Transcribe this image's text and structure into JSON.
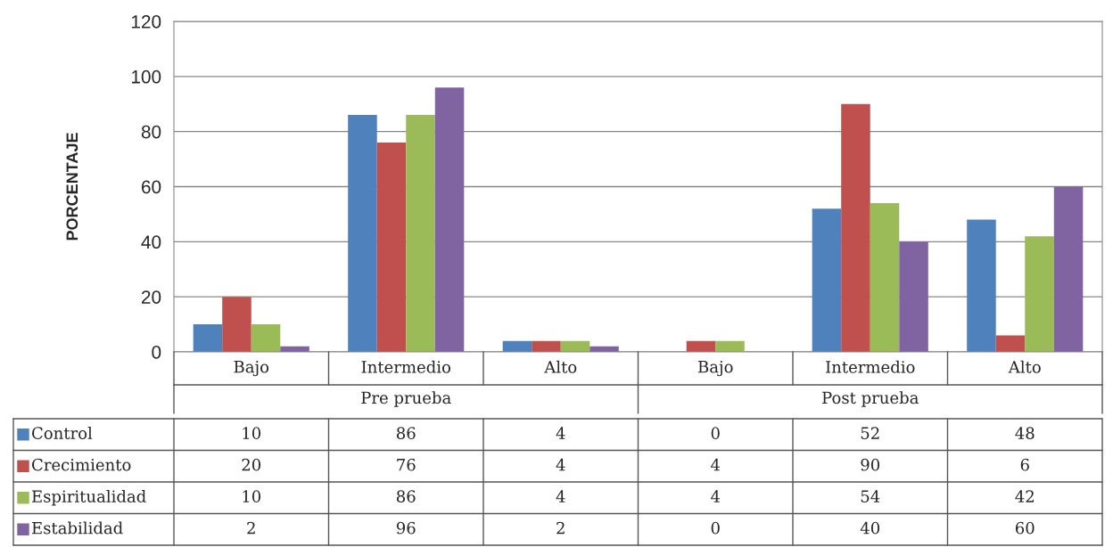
{
  "chart_data": {
    "type": "bar",
    "ylabel": "PORCENTAJE",
    "categories": [
      "Bajo",
      "Intermedio",
      "Alto",
      "Bajo",
      "Intermedio",
      "Alto"
    ],
    "annotations": [
      "Pre prueba",
      "Post prueba"
    ],
    "series": [
      {
        "name": "Control",
        "color": "#4f81bd",
        "values": [
          10,
          86,
          4,
          0,
          52,
          48
        ]
      },
      {
        "name": "Crecimiento",
        "color": "#c0504d",
        "values": [
          20,
          76,
          4,
          4,
          90,
          6
        ]
      },
      {
        "name": "Espiritualidad",
        "color": "#9bbb59",
        "values": [
          10,
          86,
          4,
          4,
          54,
          42
        ]
      },
      {
        "name": "Estabilidad",
        "color": "#8064a2",
        "values": [
          2,
          96,
          2,
          0,
          40,
          60
        ]
      }
    ],
    "ylim": [
      0,
      120
    ],
    "yticks": [
      0,
      20,
      40,
      60,
      80,
      100,
      120
    ],
    "grid": "y",
    "legend": "bottom",
    "data_labels": true,
    "tick_labels": "y"
  }
}
